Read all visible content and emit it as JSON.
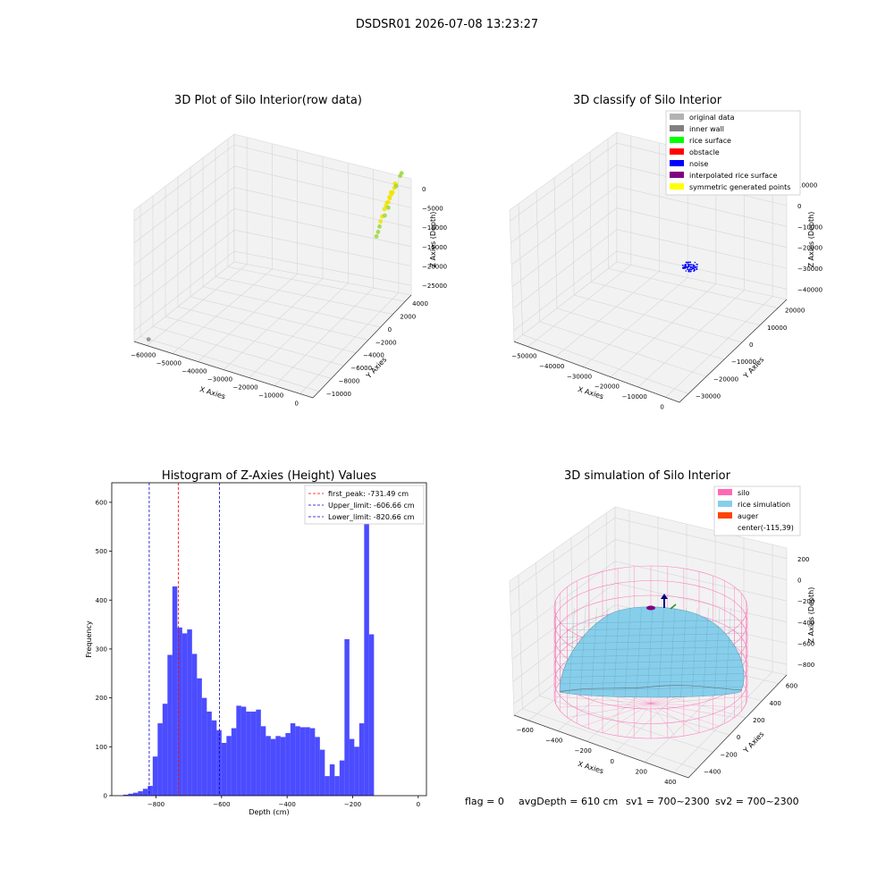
{
  "figure": {
    "suptitle": "DSDSR01 2026-07-08 13:23:27",
    "footer": {
      "flag": "flag = 0",
      "avg_depth": "avgDepth = 610 cm",
      "sv1": "sv1 = 700~2300",
      "sv2": "sv2 = 700~2300"
    }
  },
  "chart_data": [
    {
      "type": "scatter",
      "projection": "3d",
      "title": "3D Plot of Silo Interior(row data)",
      "xlabel": "X Axies",
      "ylabel": "Y Axies",
      "zlabel": "Z Axies (Depth)",
      "x_ticks": [
        "−60000",
        "−50000",
        "−40000",
        "−30000",
        "−20000",
        "−10000",
        "0"
      ],
      "y_ticks": [
        "−10000",
        "−8000",
        "−6000",
        "−4000",
        "−2000",
        "0",
        "2000",
        "4000"
      ],
      "z_ticks": [
        "0",
        "−5000",
        "−10000",
        "−15000",
        "−20000",
        "−25000"
      ],
      "xlim": [
        -62000,
        2000
      ],
      "ylim": [
        -10000,
        5000
      ],
      "zlim": [
        -28000,
        1000
      ],
      "grid": true,
      "series": [
        {
          "color": "#f0e400",
          "points": [
            [
              -300,
              2900,
              -2600
            ],
            [
              -200,
              3100,
              -2900
            ],
            [
              -400,
              2700,
              -3400
            ],
            [
              -100,
              3300,
              -2200
            ],
            [
              -600,
              2400,
              -4200
            ],
            [
              -800,
              2100,
              -5200
            ],
            [
              -500,
              2800,
              -3800
            ],
            [
              -900,
              1800,
              -6400
            ],
            [
              -300,
              3500,
              -1600
            ],
            [
              -700,
              2300,
              -4800
            ],
            [
              -400,
              3000,
              -3200
            ],
            [
              -1000,
              1600,
              -7200
            ],
            [
              -200,
              3600,
              -1900
            ],
            [
              -600,
              2600,
              -4400
            ]
          ]
        },
        {
          "color": "#9ad83a",
          "points": [
            [
              -1100,
              1500,
              -8200
            ],
            [
              -1200,
              1300,
              -9100
            ],
            [
              -100,
              4200,
              -900
            ],
            [
              -50,
              4400,
              -600
            ],
            [
              -900,
              2200,
              -6800
            ],
            [
              -1300,
              1100,
              -9800
            ],
            [
              -400,
              3700,
              -2500
            ],
            [
              -800,
              2700,
              -5800
            ]
          ]
        },
        {
          "color": "#888888",
          "points": [
            [
              -58000,
              -9500,
              -27500
            ]
          ]
        }
      ]
    },
    {
      "type": "scatter",
      "projection": "3d",
      "title": "3D classify of Silo Interior",
      "xlabel": "X Axies",
      "ylabel": "Y Axies",
      "zlabel": "Z Axies (Depth)",
      "x_ticks": [
        "−50000",
        "−40000",
        "−30000",
        "−20000",
        "−10000",
        "0"
      ],
      "y_ticks": [
        "−30000",
        "−20000",
        "−10000",
        "0",
        "10000",
        "20000"
      ],
      "z_ticks": [
        "10000",
        "0",
        "−10000",
        "−20000",
        "−30000",
        "−40000"
      ],
      "xlim": [
        -56000,
        2000
      ],
      "ylim": [
        -34000,
        26000
      ],
      "zlim": [
        -44000,
        12000
      ],
      "legend": {
        "position": "upper right",
        "items": [
          {
            "label": "original data",
            "color": "#b3b3b3"
          },
          {
            "label": "inner wall",
            "color": "#808080"
          },
          {
            "label": "rice surface",
            "color": "#00ff00"
          },
          {
            "label": "obstacle",
            "color": "#ff0000"
          },
          {
            "label": "noise",
            "color": "#0000ff"
          },
          {
            "label": "interpolated rice surface",
            "color": "#800080"
          },
          {
            "label": "symmetric generated points",
            "color": "#ffff00"
          }
        ]
      },
      "noise_cluster": {
        "x": -600,
        "y": 1200,
        "z": -13000,
        "color": "#0000ff"
      }
    },
    {
      "type": "bar",
      "title": "Histogram of Z-Axies (Height) Values",
      "xlabel": "Depth (cm)",
      "ylabel": "Frequency",
      "bin_start": -900,
      "bin_width": 15,
      "values": [
        2,
        4,
        6,
        9,
        14,
        20,
        80,
        148,
        188,
        288,
        428,
        344,
        332,
        340,
        290,
        240,
        200,
        172,
        154,
        134,
        108,
        122,
        138,
        184,
        182,
        172,
        172,
        176,
        142,
        122,
        116,
        122,
        120,
        128,
        148,
        142,
        140,
        140,
        138,
        120,
        94,
        40,
        64,
        40,
        72,
        320,
        116,
        100,
        148,
        620,
        330
      ],
      "bar_color": "#0000ff",
      "xlim": [
        -935,
        25
      ],
      "ylim": [
        0,
        640
      ],
      "x_ticks": [
        -800,
        -600,
        -400,
        -200,
        0
      ],
      "y_ticks": [
        0,
        100,
        200,
        300,
        400,
        500,
        600
      ],
      "x_tick_labels": [
        "−800",
        "−600",
        "−400",
        "−200",
        "0"
      ],
      "y_tick_labels": [
        "0",
        "100",
        "200",
        "300",
        "400",
        "500",
        "600"
      ],
      "vlines": [
        {
          "x": -731.49,
          "color": "#ff0000",
          "label": "first_peak: -731.49 cm"
        },
        {
          "x": -606.66,
          "color": "#0000cc",
          "label": "Upper_limit: -606.66 cm"
        },
        {
          "x": -820.66,
          "color": "#0000cc",
          "label": "Lower_limit: -820.66 cm"
        }
      ],
      "legend_position": "upper right"
    },
    {
      "type": "surface",
      "projection": "3d",
      "title": "3D simulation of Silo Interior",
      "xlabel": "X Axies",
      "ylabel": "Y Axies",
      "zlabel": "Z Axies (Depth)",
      "x_ticks": [
        "−600",
        "−400",
        "−200",
        "0",
        "200",
        "400"
      ],
      "y_ticks": [
        "−400",
        "−200",
        "0",
        "200",
        "400",
        "600"
      ],
      "z_ticks": [
        "200",
        "0",
        "−200",
        "−400",
        "−600",
        "−800"
      ],
      "legend": {
        "position": "upper right",
        "items": [
          {
            "label": "silo",
            "color": "#ff69b4"
          },
          {
            "label": "rice simulation",
            "color": "#87ceeb"
          },
          {
            "label": "auger",
            "color": "#ff4500"
          },
          {
            "label": "center(-115,39)",
            "color": ""
          }
        ]
      },
      "silo_color": "#ff69b4",
      "rice_color": "#87ceeb"
    }
  ]
}
